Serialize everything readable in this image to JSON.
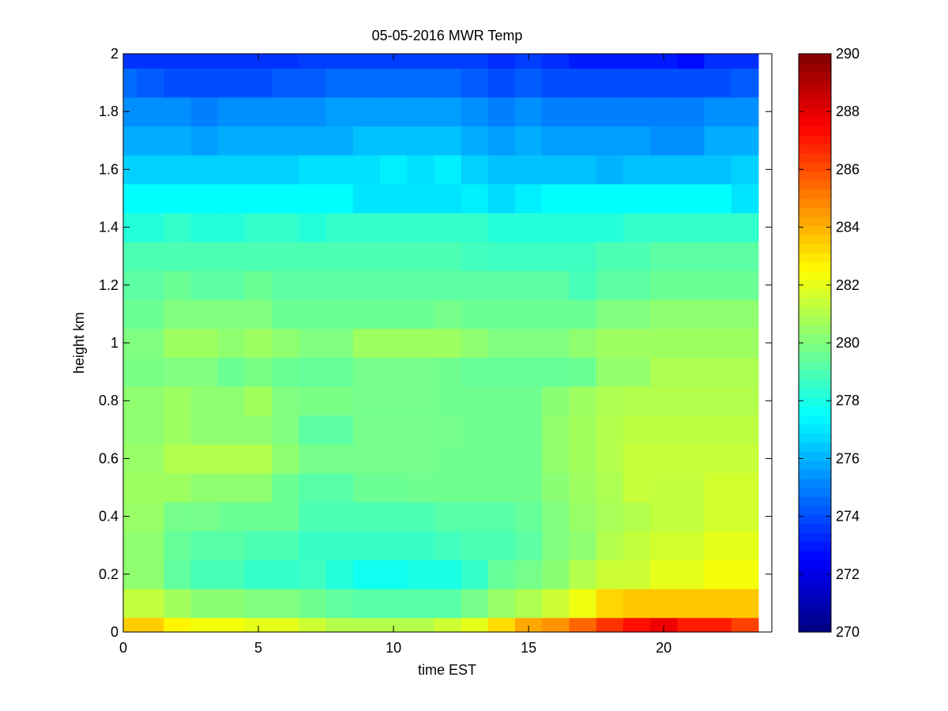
{
  "chart_data": {
    "type": "heatmap",
    "title": "05-05-2016 MWR Temp",
    "xlabel": "time EST",
    "ylabel": "height km",
    "xlim": [
      0,
      24
    ],
    "ylim": [
      0,
      2
    ],
    "x_ticks": [
      0,
      5,
      10,
      15,
      20
    ],
    "x_tick_labels": [
      "0",
      "5",
      "10",
      "15",
      "20"
    ],
    "y_ticks": [
      0,
      0.2,
      0.4,
      0.6,
      0.8,
      1.0,
      1.2,
      1.4,
      1.6,
      1.8,
      2.0
    ],
    "y_tick_labels": [
      "0",
      "0.2",
      "0.4",
      "0.6",
      "0.8",
      "1",
      "1.2",
      "1.4",
      "1.6",
      "1.8",
      "2"
    ],
    "colorbar": {
      "colormap": "jet",
      "clim": [
        270,
        290
      ],
      "ticks": [
        270,
        272,
        274,
        276,
        278,
        280,
        282,
        284,
        286,
        288,
        290
      ],
      "tick_labels": [
        "270",
        "272",
        "274",
        "276",
        "278",
        "280",
        "282",
        "284",
        "286",
        "288",
        "290"
      ]
    },
    "x": [
      0,
      1,
      2,
      3,
      4,
      5,
      6,
      7,
      8,
      9,
      10,
      11,
      12,
      13,
      14,
      15,
      16,
      17,
      18,
      19,
      20,
      21,
      22,
      23
    ],
    "y": [
      0,
      0.1,
      0.2,
      0.3,
      0.4,
      0.5,
      0.6,
      0.7,
      0.8,
      0.9,
      1.0,
      1.1,
      1.2,
      1.3,
      1.4,
      1.5,
      1.6,
      1.7,
      1.8,
      1.9,
      2.0
    ],
    "values": [
      [
        283.5,
        283.5,
        282.7,
        282.3,
        282.3,
        282.0,
        282.0,
        281.5,
        281.0,
        281.0,
        281.0,
        281.0,
        281.5,
        282.0,
        283.2,
        284.2,
        284.6,
        285.5,
        286.5,
        287.2,
        287.8,
        287.0,
        287.0,
        286.2
      ],
      [
        281.3,
        281.3,
        280.7,
        280.2,
        280.2,
        280.0,
        280.0,
        279.7,
        279.4,
        279.2,
        279.2,
        279.2,
        279.2,
        279.8,
        280.5,
        280.9,
        281.5,
        282.2,
        283.3,
        283.6,
        283.6,
        283.6,
        283.6,
        283.6
      ],
      [
        280.3,
        280.3,
        279.4,
        278.9,
        278.9,
        278.5,
        278.5,
        278.7,
        278.2,
        277.8,
        277.8,
        278.0,
        278.0,
        278.5,
        279.5,
        279.8,
        280.2,
        281.0,
        281.5,
        281.5,
        282.0,
        282.0,
        282.3,
        282.3
      ],
      [
        280.3,
        280.3,
        279.5,
        279.2,
        279.2,
        279.0,
        279.0,
        278.6,
        278.6,
        278.6,
        278.6,
        278.6,
        278.8,
        279.0,
        279.0,
        279.3,
        280.0,
        280.3,
        281.0,
        281.3,
        281.6,
        281.6,
        282.0,
        282.0
      ],
      [
        280.5,
        280.5,
        279.8,
        279.8,
        279.6,
        279.6,
        279.6,
        279.0,
        279.0,
        279.0,
        279.0,
        279.0,
        279.2,
        279.2,
        279.2,
        279.5,
        280.0,
        280.5,
        280.8,
        281.0,
        281.3,
        281.3,
        281.6,
        281.6
      ],
      [
        280.6,
        280.6,
        280.6,
        280.3,
        280.3,
        280.3,
        279.6,
        279.2,
        279.2,
        279.6,
        279.6,
        279.7,
        279.7,
        279.7,
        279.7,
        279.7,
        280.2,
        280.6,
        280.9,
        281.4,
        281.3,
        281.3,
        281.6,
        281.6
      ],
      [
        280.5,
        280.5,
        281.0,
        281.0,
        281.0,
        281.0,
        280.3,
        279.8,
        279.8,
        279.8,
        279.8,
        279.8,
        279.7,
        279.7,
        279.7,
        279.7,
        280.4,
        280.7,
        281.0,
        281.4,
        281.4,
        281.4,
        281.4,
        281.4
      ],
      [
        280.3,
        280.3,
        280.6,
        280.3,
        280.3,
        280.3,
        280.0,
        279.3,
        279.3,
        279.8,
        279.8,
        279.8,
        279.8,
        279.7,
        279.7,
        279.7,
        280.4,
        280.7,
        281.0,
        281.2,
        281.2,
        281.2,
        281.2,
        281.2
      ],
      [
        280.3,
        280.3,
        280.6,
        280.3,
        280.3,
        280.7,
        280.0,
        279.9,
        279.9,
        279.8,
        279.8,
        279.8,
        279.7,
        279.7,
        279.7,
        279.7,
        280.2,
        280.6,
        280.9,
        281.0,
        281.0,
        281.0,
        281.0,
        281.0
      ],
      [
        279.9,
        279.9,
        280.0,
        280.0,
        279.6,
        279.9,
        279.6,
        279.5,
        279.5,
        279.8,
        279.8,
        279.8,
        279.7,
        279.5,
        279.5,
        279.5,
        279.5,
        279.6,
        280.4,
        280.4,
        280.9,
        280.9,
        280.9,
        280.9
      ],
      [
        280.0,
        280.0,
        280.6,
        280.6,
        280.3,
        280.6,
        280.3,
        280.0,
        280.0,
        280.6,
        280.6,
        280.6,
        280.6,
        280.3,
        280.0,
        280.0,
        280.0,
        280.3,
        280.6,
        280.6,
        280.6,
        280.6,
        280.6,
        280.6
      ],
      [
        279.6,
        279.6,
        280.0,
        280.0,
        280.0,
        280.0,
        279.6,
        279.6,
        279.6,
        279.6,
        279.6,
        279.6,
        279.8,
        279.6,
        279.6,
        279.6,
        279.6,
        279.6,
        280.0,
        280.0,
        280.3,
        280.3,
        280.3,
        280.3
      ],
      [
        279.3,
        279.3,
        279.6,
        279.3,
        279.3,
        279.6,
        279.3,
        279.3,
        279.3,
        279.3,
        279.3,
        279.3,
        279.3,
        279.3,
        279.3,
        279.3,
        279.3,
        278.9,
        279.3,
        279.3,
        279.6,
        279.6,
        279.6,
        279.6
      ],
      [
        279.0,
        279.0,
        279.0,
        279.0,
        279.0,
        279.0,
        279.0,
        279.0,
        279.0,
        279.0,
        279.0,
        279.0,
        279.0,
        278.8,
        278.7,
        278.7,
        278.7,
        278.7,
        279.0,
        279.0,
        279.3,
        279.3,
        279.3,
        279.3
      ],
      [
        278.2,
        278.2,
        278.5,
        278.2,
        278.2,
        278.5,
        278.5,
        278.2,
        278.5,
        278.5,
        278.5,
        278.5,
        278.5,
        278.5,
        278.2,
        278.2,
        278.2,
        278.2,
        278.2,
        278.5,
        278.5,
        278.5,
        278.5,
        278.5
      ],
      [
        277.5,
        277.5,
        277.5,
        277.5,
        277.5,
        277.5,
        277.5,
        277.5,
        277.5,
        277.0,
        277.0,
        277.0,
        277.0,
        277.2,
        276.8,
        277.2,
        277.5,
        277.5,
        277.5,
        277.5,
        277.5,
        277.5,
        277.5,
        277.0
      ],
      [
        276.6,
        276.6,
        276.6,
        276.6,
        276.6,
        276.6,
        276.6,
        276.9,
        276.9,
        276.9,
        277.2,
        276.9,
        277.2,
        276.6,
        276.3,
        276.3,
        276.3,
        276.3,
        276.0,
        276.3,
        276.3,
        276.3,
        276.3,
        276.6
      ],
      [
        275.9,
        275.9,
        275.9,
        275.6,
        275.9,
        275.9,
        275.9,
        275.9,
        275.9,
        276.3,
        276.3,
        276.3,
        276.3,
        275.9,
        275.6,
        275.9,
        275.6,
        275.6,
        275.6,
        275.6,
        275.3,
        275.3,
        275.9,
        275.9
      ],
      [
        275.3,
        275.3,
        275.3,
        275.0,
        275.3,
        275.3,
        275.3,
        275.3,
        275.6,
        275.6,
        275.6,
        275.6,
        275.6,
        275.3,
        275.0,
        275.3,
        275.0,
        275.0,
        275.0,
        275.0,
        275.0,
        275.0,
        275.3,
        275.3
      ],
      [
        274.6,
        274.3,
        274.0,
        274.0,
        274.0,
        274.0,
        274.3,
        274.3,
        274.6,
        274.6,
        274.6,
        274.6,
        274.6,
        274.3,
        274.0,
        274.3,
        274.0,
        274.0,
        274.0,
        274.0,
        274.0,
        274.0,
        274.0,
        274.3
      ],
      [
        273.5,
        273.5,
        273.5,
        273.5,
        273.5,
        273.5,
        273.5,
        273.7,
        273.7,
        273.7,
        273.7,
        273.7,
        273.7,
        273.7,
        273.4,
        273.7,
        273.4,
        273.0,
        273.0,
        273.0,
        273.0,
        272.7,
        273.4,
        273.4
      ]
    ]
  }
}
